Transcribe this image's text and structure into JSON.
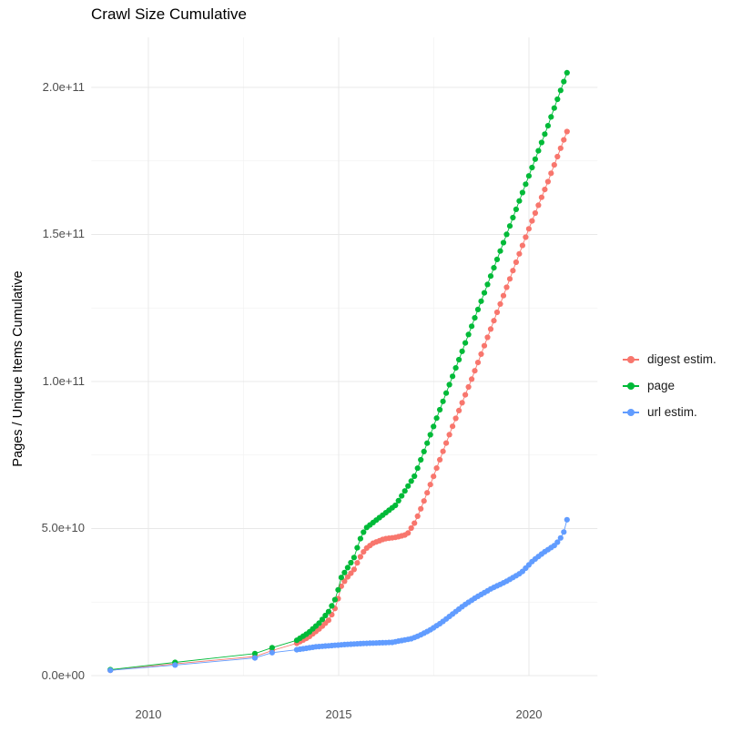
{
  "chart_data": {
    "type": "scatter",
    "style": "points+lines",
    "title": "Crawl Size Cumulative",
    "xlabel": "",
    "ylabel": "Pages / Unique Items Cumulative",
    "legend_position": "right",
    "grid": "major+minor",
    "x_ticks": [
      "2010",
      "2015",
      "2020"
    ],
    "x_tick_values": [
      2010,
      2015,
      2020
    ],
    "y_ticks": [
      "0.0e+00",
      "5.0e+10",
      "1.0e+11",
      "1.5e+11",
      "2.0e+11"
    ],
    "y_tick_values_e9": [
      0,
      50,
      100,
      150,
      200
    ],
    "x_minor_values": [
      2012.5,
      2017.5
    ],
    "y_minor_values_e9": [
      25,
      75,
      125,
      175
    ],
    "xlim": [
      2008.5,
      2021.8
    ],
    "ylim_e9": [
      0,
      217
    ],
    "values_unit": "1e9 pages (y axis labeled in scientific notation)",
    "dense_from": 2013.9,
    "x_end": 2021.0,
    "point_interval_years": 0.0833,
    "series": [
      {
        "name": "digest estim.",
        "color": "#F8766D",
        "sparse": [
          [
            2009.0,
            1.8
          ],
          [
            2010.7,
            4.0
          ],
          [
            2012.8,
            6.5
          ],
          [
            2013.25,
            8.5
          ]
        ],
        "anchors": [
          [
            2013.9,
            11
          ],
          [
            2014.2,
            13
          ],
          [
            2014.5,
            16
          ],
          [
            2014.75,
            19
          ],
          [
            2014.95,
            24
          ],
          [
            2015.05,
            30
          ],
          [
            2015.2,
            33
          ],
          [
            2015.4,
            36
          ],
          [
            2015.55,
            40
          ],
          [
            2015.7,
            43
          ],
          [
            2015.9,
            45
          ],
          [
            2016.2,
            46.5
          ],
          [
            2016.5,
            47
          ],
          [
            2016.8,
            48
          ],
          [
            2017.0,
            52
          ],
          [
            2017.2,
            58
          ],
          [
            2017.5,
            68
          ],
          [
            2018.0,
            85
          ],
          [
            2018.5,
            101
          ],
          [
            2019.0,
            118
          ],
          [
            2019.5,
            135
          ],
          [
            2020.0,
            152
          ],
          [
            2020.5,
            168
          ],
          [
            2021.0,
            185
          ]
        ]
      },
      {
        "name": "page",
        "color": "#00BA38",
        "sparse": [
          [
            2009.0,
            2.0
          ],
          [
            2010.7,
            4.5
          ],
          [
            2012.8,
            7.5
          ],
          [
            2013.25,
            9.5
          ]
        ],
        "anchors": [
          [
            2013.9,
            12
          ],
          [
            2014.2,
            14.5
          ],
          [
            2014.5,
            18
          ],
          [
            2014.75,
            22
          ],
          [
            2014.95,
            27
          ],
          [
            2015.05,
            33
          ],
          [
            2015.2,
            36
          ],
          [
            2015.4,
            40
          ],
          [
            2015.55,
            46
          ],
          [
            2015.7,
            50
          ],
          [
            2015.9,
            52
          ],
          [
            2016.2,
            55
          ],
          [
            2016.5,
            58
          ],
          [
            2016.8,
            64
          ],
          [
            2017.0,
            68
          ],
          [
            2017.5,
            85
          ],
          [
            2018.0,
            102
          ],
          [
            2018.5,
            119
          ],
          [
            2019.0,
            136
          ],
          [
            2019.5,
            153
          ],
          [
            2020.0,
            170
          ],
          [
            2020.5,
            187
          ],
          [
            2021.0,
            205
          ]
        ]
      },
      {
        "name": "url estim.",
        "color": "#619CFF",
        "sparse": [
          [
            2009.0,
            1.8
          ],
          [
            2010.7,
            3.6
          ],
          [
            2012.8,
            6.0
          ],
          [
            2013.25,
            7.8
          ]
        ],
        "anchors": [
          [
            2013.9,
            8.8
          ],
          [
            2014.1,
            9.2
          ],
          [
            2014.4,
            9.8
          ],
          [
            2014.8,
            10.2
          ],
          [
            2015.2,
            10.6
          ],
          [
            2015.6,
            10.9
          ],
          [
            2016.0,
            11.1
          ],
          [
            2016.4,
            11.3
          ],
          [
            2016.6,
            11.8
          ],
          [
            2016.9,
            12.5
          ],
          [
            2017.1,
            13.5
          ],
          [
            2017.4,
            15.5
          ],
          [
            2017.7,
            18
          ],
          [
            2018.0,
            21
          ],
          [
            2018.3,
            24
          ],
          [
            2018.6,
            26.5
          ],
          [
            2019.0,
            29.5
          ],
          [
            2019.4,
            32
          ],
          [
            2019.8,
            35
          ],
          [
            2020.1,
            39
          ],
          [
            2020.4,
            42
          ],
          [
            2020.7,
            44.5
          ],
          [
            2020.9,
            48
          ],
          [
            2021.0,
            53
          ]
        ]
      }
    ]
  }
}
